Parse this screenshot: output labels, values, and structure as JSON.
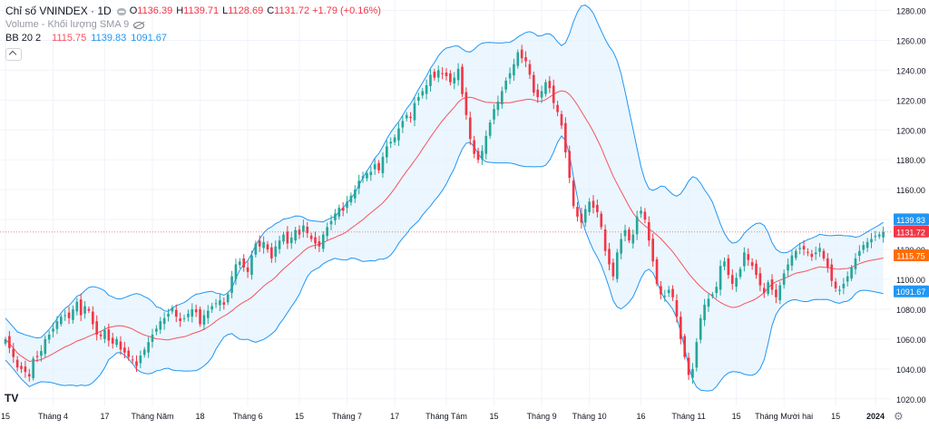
{
  "header": {
    "symbol_title": "Chỉ số VNINDEX · 1D",
    "ohlc": [
      {
        "label": "O",
        "value": "1136.39"
      },
      {
        "label": "H",
        "value": "1139.71"
      },
      {
        "label": "L",
        "value": "1128.69"
      },
      {
        "label": "C",
        "value": "1131.72"
      }
    ],
    "change": "+1.79 (+0.16%)",
    "volume_label": "Volume - Khối lượng SMA 9",
    "bb_label": "BB 20 2",
    "bb_values": {
      "basis": "1115.75",
      "upper": "1139.83",
      "lower": "1091.67"
    }
  },
  "colors": {
    "up": "#26a69a",
    "down": "#f23645",
    "basis": "#f7525f",
    "band": "#2196f3",
    "band_fill": "#e3f2fd",
    "last": "#f23645",
    "basis_tag": "#ff6d00"
  },
  "price_labels": {
    "upper": "1139.83",
    "last": "1131.72",
    "basis": "1115.75",
    "lower": "1091.67"
  },
  "chart_data": {
    "type": "candlestick",
    "title": "Chỉ số VNINDEX · 1D",
    "ylim": [
      1015,
      1287
    ],
    "y_ticks": [
      "1020.00",
      "1040.00",
      "1060.00",
      "1080.00",
      "1100.00",
      "1120.00",
      "1140.00",
      "1160.00",
      "1180.00",
      "1200.00",
      "1220.00",
      "1240.00",
      "1260.00",
      "1280.00"
    ],
    "x_ticks": [
      "15",
      "Tháng 4",
      "17",
      "Tháng Năm",
      "18",
      "Tháng 6",
      "15",
      "Tháng 7",
      "17",
      "Tháng Tám",
      "15",
      "Tháng 9",
      "Tháng 10",
      "16",
      "Tháng 11",
      "15",
      "Tháng Mười hai",
      "15",
      "2024"
    ],
    "closes": [
      1060,
      1054,
      1048,
      1041,
      1040,
      1038,
      1035,
      1047,
      1048,
      1052,
      1060,
      1063,
      1067,
      1072,
      1075,
      1076,
      1074,
      1080,
      1085,
      1076,
      1082,
      1079,
      1070,
      1063,
      1062,
      1066,
      1059,
      1057,
      1060,
      1053,
      1051,
      1048,
      1046,
      1042,
      1049,
      1053,
      1058,
      1063,
      1067,
      1072,
      1074,
      1077,
      1081,
      1075,
      1072,
      1074,
      1077,
      1080,
      1078,
      1070,
      1076,
      1079,
      1082,
      1084,
      1086,
      1083,
      1090,
      1102,
      1110,
      1112,
      1108,
      1105,
      1116,
      1124,
      1122,
      1125,
      1120,
      1114,
      1122,
      1126,
      1130,
      1124,
      1128,
      1133,
      1130,
      1136,
      1131,
      1127,
      1124,
      1122,
      1130,
      1135,
      1139,
      1144,
      1148,
      1146,
      1152,
      1156,
      1160,
      1166,
      1169,
      1171,
      1172,
      1177,
      1173,
      1182,
      1189,
      1192,
      1195,
      1201,
      1206,
      1210,
      1208,
      1218,
      1222,
      1226,
      1230,
      1237,
      1235,
      1240,
      1238,
      1236,
      1232,
      1235,
      1241,
      1224,
      1210,
      1194,
      1184,
      1180,
      1186,
      1196,
      1205,
      1214,
      1219,
      1226,
      1233,
      1238,
      1244,
      1252,
      1248,
      1246,
      1237,
      1225,
      1222,
      1226,
      1232,
      1228,
      1218,
      1212,
      1203,
      1185,
      1168,
      1149,
      1142,
      1138,
      1147,
      1152,
      1148,
      1145,
      1135,
      1119,
      1110,
      1102,
      1118,
      1127,
      1133,
      1126,
      1130,
      1142,
      1146,
      1140,
      1126,
      1112,
      1097,
      1090,
      1089,
      1093,
      1088,
      1075,
      1060,
      1048,
      1036,
      1040,
      1058,
      1074,
      1083,
      1087,
      1090,
      1095,
      1109,
      1112,
      1103,
      1097,
      1101,
      1107,
      1118,
      1113,
      1109,
      1103,
      1096,
      1091,
      1098,
      1093,
      1088,
      1096,
      1104,
      1110,
      1116,
      1119,
      1121,
      1120,
      1118,
      1115,
      1118,
      1121,
      1114,
      1108,
      1099,
      1094,
      1093,
      1097,
      1102,
      1108,
      1114,
      1119,
      1123,
      1125,
      1127,
      1129,
      1130,
      1131.72
    ]
  }
}
